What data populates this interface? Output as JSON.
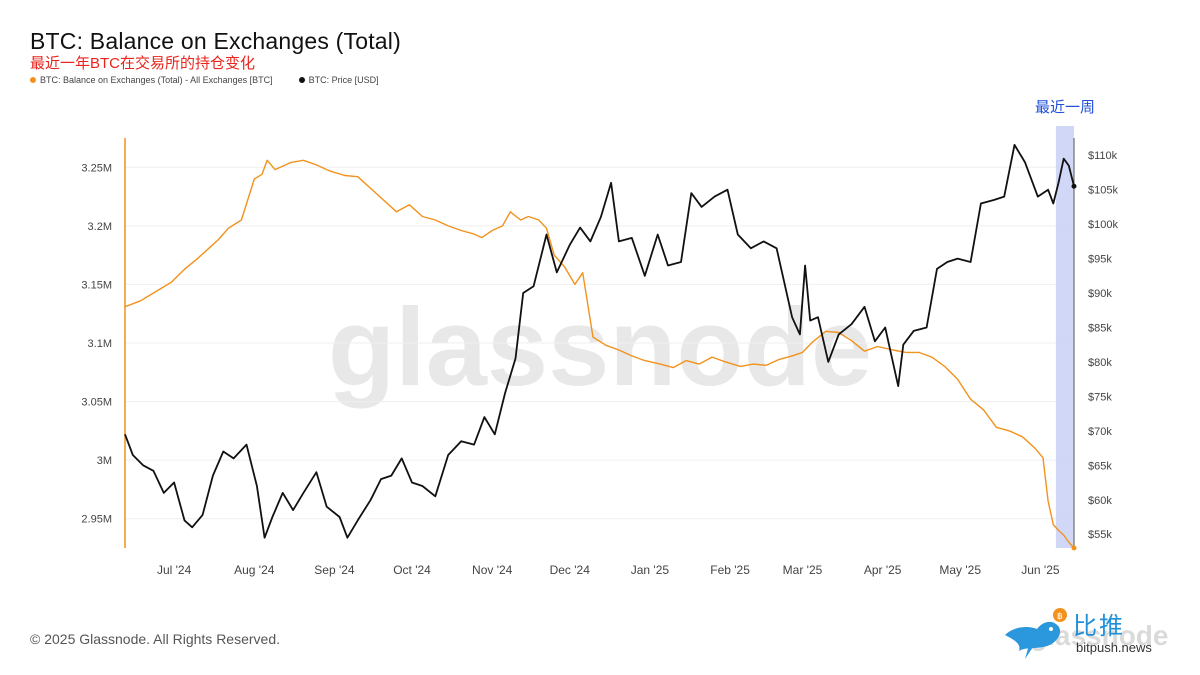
{
  "header": {
    "title": "BTC: Balance on Exchanges (Total)",
    "subtitle": "最近一年BTC在交易所的持仓变化"
  },
  "legend": {
    "balance": "BTC: Balance on Exchanges (Total) - All Exchanges [BTC]",
    "price": "BTC: Price [USD]"
  },
  "footer": {
    "copyright": "© 2025 Glassnode. All Rights Reserved."
  },
  "logo": {
    "cn": "比推",
    "en": "bitpush.news",
    "watermark": "glassnode"
  },
  "chart_data": {
    "type": "line",
    "title": "BTC: Balance on Exchanges (Total)",
    "subtitle": "最近一年BTC在交易所的持仓变化",
    "watermark": "glassnode",
    "highlight_label": "最近一周",
    "highlight_range": [
      "2025-06-07",
      "2025-06-14"
    ],
    "highlight_color": "#c9d0f5",
    "x_ticks": [
      "Jul '24",
      "Aug '24",
      "Sep '24",
      "Oct '24",
      "Nov '24",
      "Dec '24",
      "Jan '25",
      "Feb '25",
      "Mar '25",
      "Apr '25",
      "May '25",
      "Jun '25"
    ],
    "x_tick_dates": [
      "2024-07-01",
      "2024-08-01",
      "2024-09-01",
      "2024-10-01",
      "2024-11-01",
      "2024-12-01",
      "2025-01-01",
      "2025-02-01",
      "2025-03-01",
      "2025-04-01",
      "2025-05-01",
      "2025-06-01"
    ],
    "xlim": [
      "2024-06-12",
      "2025-06-14"
    ],
    "y_left": {
      "ticks": [
        "2.95M",
        "3M",
        "3.05M",
        "3.1M",
        "3.15M",
        "3.2M",
        "3.25M"
      ],
      "tick_values": [
        2950000,
        3000000,
        3050000,
        3100000,
        3150000,
        3200000,
        3250000
      ],
      "range": [
        2925000,
        3275000
      ]
    },
    "y_right": {
      "ticks": [
        "$55k",
        "$60k",
        "$65k",
        "$70k",
        "$75k",
        "$80k",
        "$85k",
        "$90k",
        "$95k",
        "$100k",
        "$105k",
        "$110k"
      ],
      "tick_values": [
        55000,
        60000,
        65000,
        70000,
        75000,
        80000,
        85000,
        90000,
        95000,
        100000,
        105000,
        110000
      ],
      "range": [
        53000,
        112500
      ]
    },
    "grid": true,
    "legend_position": "top-left",
    "series": [
      {
        "name": "BTC: Balance on Exchanges (Total) - All Exchanges [BTC]",
        "axis": "left",
        "color": "#f2921d",
        "x": [
          "2024-06-12",
          "2024-06-18",
          "2024-06-24",
          "2024-06-30",
          "2024-07-05",
          "2024-07-10",
          "2024-07-14",
          "2024-07-18",
          "2024-07-22",
          "2024-07-27",
          "2024-08-01",
          "2024-08-04",
          "2024-08-06",
          "2024-08-09",
          "2024-08-15",
          "2024-08-20",
          "2024-08-25",
          "2024-08-30",
          "2024-09-05",
          "2024-09-10",
          "2024-09-15",
          "2024-09-20",
          "2024-09-25",
          "2024-09-30",
          "2024-10-05",
          "2024-10-10",
          "2024-10-15",
          "2024-10-20",
          "2024-10-25",
          "2024-10-28",
          "2024-11-01",
          "2024-11-05",
          "2024-11-08",
          "2024-11-12",
          "2024-11-15",
          "2024-11-19",
          "2024-11-22",
          "2024-11-25",
          "2024-11-29",
          "2024-12-03",
          "2024-12-06",
          "2024-12-10",
          "2024-12-15",
          "2024-12-20",
          "2024-12-25",
          "2024-12-30",
          "2025-01-05",
          "2025-01-10",
          "2025-01-15",
          "2025-01-20",
          "2025-01-25",
          "2025-01-30",
          "2025-02-05",
          "2025-02-10",
          "2025-02-15",
          "2025-02-20",
          "2025-02-25",
          "2025-03-01",
          "2025-03-05",
          "2025-03-10",
          "2025-03-15",
          "2025-03-20",
          "2025-03-25",
          "2025-03-30",
          "2025-04-05",
          "2025-04-10",
          "2025-04-15",
          "2025-04-20",
          "2025-04-25",
          "2025-04-30",
          "2025-05-05",
          "2025-05-10",
          "2025-05-15",
          "2025-05-20",
          "2025-05-25",
          "2025-05-30",
          "2025-06-02",
          "2025-06-04",
          "2025-06-06",
          "2025-06-08",
          "2025-06-10",
          "2025-06-12",
          "2025-06-14"
        ],
        "values": [
          3131000,
          3136000,
          3144000,
          3152000,
          3163000,
          3172000,
          3180000,
          3188000,
          3198000,
          3205000,
          3240000,
          3244000,
          3256000,
          3248000,
          3254000,
          3256000,
          3252000,
          3247000,
          3243000,
          3242000,
          3232000,
          3222000,
          3212000,
          3218000,
          3208000,
          3205000,
          3200000,
          3196000,
          3193000,
          3190000,
          3196000,
          3200000,
          3212000,
          3205000,
          3208000,
          3205000,
          3198000,
          3175000,
          3165000,
          3150000,
          3160000,
          3105000,
          3098000,
          3094000,
          3089000,
          3085000,
          3082000,
          3079000,
          3085000,
          3082000,
          3088000,
          3084000,
          3080000,
          3082000,
          3081000,
          3086000,
          3089000,
          3092000,
          3101000,
          3110000,
          3109000,
          3102000,
          3093000,
          3097000,
          3094000,
          3092000,
          3092000,
          3088000,
          3080000,
          3069000,
          3052000,
          3043000,
          3028000,
          3025000,
          3020000,
          3010000,
          3002000,
          2965000,
          2945000,
          2940000,
          2936000,
          2930000,
          2925000
        ]
      },
      {
        "name": "BTC: Price [USD]",
        "axis": "right",
        "color": "#111111",
        "x": [
          "2024-06-12",
          "2024-06-15",
          "2024-06-19",
          "2024-06-23",
          "2024-06-27",
          "2024-07-01",
          "2024-07-05",
          "2024-07-08",
          "2024-07-12",
          "2024-07-16",
          "2024-07-20",
          "2024-07-24",
          "2024-07-29",
          "2024-08-02",
          "2024-08-05",
          "2024-08-08",
          "2024-08-12",
          "2024-08-16",
          "2024-08-20",
          "2024-08-25",
          "2024-08-29",
          "2024-09-03",
          "2024-09-06",
          "2024-09-10",
          "2024-09-15",
          "2024-09-19",
          "2024-09-23",
          "2024-09-27",
          "2024-10-01",
          "2024-10-05",
          "2024-10-10",
          "2024-10-15",
          "2024-10-20",
          "2024-10-25",
          "2024-10-29",
          "2024-11-02",
          "2024-11-06",
          "2024-11-10",
          "2024-11-13",
          "2024-11-17",
          "2024-11-22",
          "2024-11-26",
          "2024-12-01",
          "2024-12-05",
          "2024-12-09",
          "2024-12-13",
          "2024-12-17",
          "2024-12-20",
          "2024-12-25",
          "2024-12-30",
          "2025-01-04",
          "2025-01-08",
          "2025-01-13",
          "2025-01-17",
          "2025-01-21",
          "2025-01-26",
          "2025-01-31",
          "2025-02-04",
          "2025-02-09",
          "2025-02-14",
          "2025-02-19",
          "2025-02-25",
          "2025-02-28",
          "2025-03-02",
          "2025-03-04",
          "2025-03-07",
          "2025-03-11",
          "2025-03-15",
          "2025-03-20",
          "2025-03-25",
          "2025-03-29",
          "2025-04-02",
          "2025-04-07",
          "2025-04-09",
          "2025-04-13",
          "2025-04-18",
          "2025-04-22",
          "2025-04-26",
          "2025-04-30",
          "2025-05-05",
          "2025-05-09",
          "2025-05-14",
          "2025-05-18",
          "2025-05-22",
          "2025-05-26",
          "2025-05-31",
          "2025-06-04",
          "2025-06-06",
          "2025-06-08",
          "2025-06-10",
          "2025-06-12",
          "2025-06-14"
        ],
        "values": [
          69500,
          66500,
          65000,
          64200,
          61000,
          62500,
          57000,
          56000,
          57800,
          63500,
          67000,
          66000,
          68000,
          62000,
          54500,
          57500,
          61000,
          58500,
          61000,
          64000,
          59000,
          57500,
          54500,
          57000,
          60000,
          63000,
          63500,
          66000,
          62500,
          62000,
          60500,
          66500,
          68500,
          68000,
          72000,
          69500,
          75500,
          80500,
          90000,
          91000,
          98500,
          93000,
          97000,
          99500,
          97500,
          101000,
          106000,
          97500,
          98000,
          92500,
          98500,
          94000,
          94500,
          104500,
          102500,
          104000,
          105000,
          98500,
          96500,
          97500,
          96500,
          86500,
          84000,
          94000,
          86000,
          86500,
          80000,
          84000,
          85500,
          88000,
          83000,
          85000,
          76500,
          82500,
          84500,
          85000,
          93500,
          94500,
          95000,
          94500,
          103000,
          103500,
          104000,
          111500,
          109000,
          104000,
          105000,
          103000,
          106000,
          109500,
          108500,
          105500
        ]
      }
    ]
  }
}
